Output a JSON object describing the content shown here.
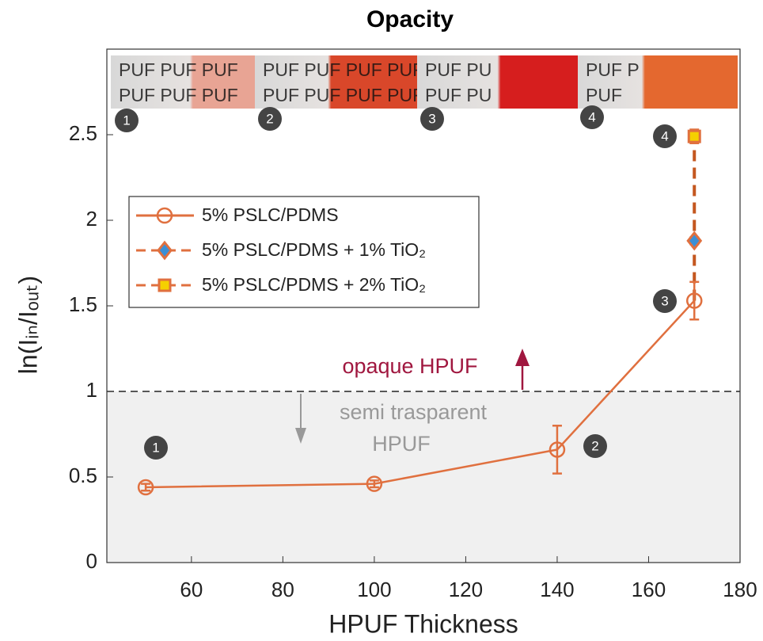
{
  "chart_data": {
    "type": "line",
    "title": "Opacity",
    "x_label": "HPUF Thickness",
    "y_label": "ln(Iᵢₙ/Iₒᵤₜ)",
    "xlim": [
      41.5,
      180
    ],
    "ylim": [
      0,
      3
    ],
    "xticks": [
      60,
      80,
      100,
      120,
      140,
      160,
      180
    ],
    "yticks": [
      0,
      0.5,
      1,
      1.5,
      2,
      2.5
    ],
    "threshold": 1,
    "annotations": [
      "opaque HPUF",
      "semi trasparent",
      "HPUF"
    ],
    "badges": [
      "1",
      "2",
      "3",
      "4"
    ],
    "photos": [
      [
        "PUF PUF PUF",
        "PUF PUF PUF"
      ],
      [
        "PUF PUF PUF PUF",
        "PUF PUF PUF PUF"
      ],
      [
        "PUF PU",
        "PUF PU"
      ],
      [
        "PUF P",
        "PUF"
      ]
    ],
    "series": [
      {
        "name": "5% PSLC/PDMS",
        "color": "#e0703f",
        "marker": "circle",
        "x": [
          50,
          100,
          140,
          170
        ],
        "values": [
          0.44,
          0.46,
          0.66,
          1.53
        ],
        "errors": [
          0.02,
          0.02,
          0.14,
          0.11
        ]
      },
      {
        "name": "5% PSLC/PDMS + 1% TiO₂",
        "color": "#3a8fd6",
        "marker": "diamond",
        "x": [
          170
        ],
        "values": [
          1.88
        ],
        "errors": [
          0.02
        ]
      },
      {
        "name": "5% PSLC/PDMS + 2% TiO₂",
        "color": "#f5d000",
        "marker": "square",
        "x": [
          170
        ],
        "values": [
          2.49
        ],
        "errors": [
          0.04
        ]
      }
    ]
  }
}
